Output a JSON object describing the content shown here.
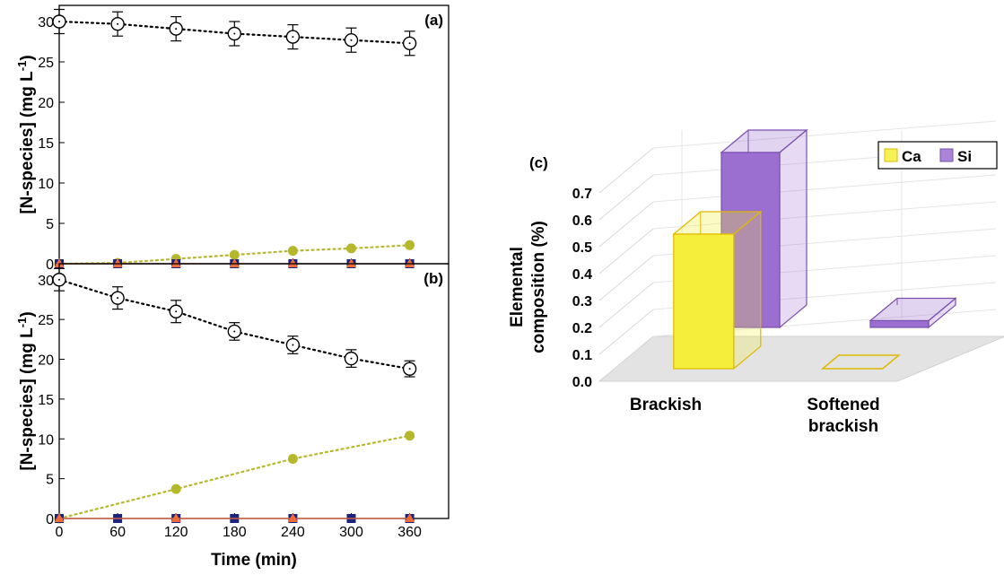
{
  "chart_data": [
    {
      "panel": "a",
      "type": "scatter",
      "label": "(a)",
      "xlim": [
        0,
        400
      ],
      "ylim": [
        0,
        32
      ],
      "x_ticks": [
        0,
        60,
        120,
        180,
        240,
        300,
        360
      ],
      "y_ticks": [
        0,
        5,
        10,
        15,
        20,
        25,
        30
      ],
      "ylabel_main": "[N-species] (mg L",
      "ylabel_sup": "-1",
      "ylabel_end": ")",
      "series": [
        {
          "marker": "open-circle",
          "color": "#000000",
          "x": [
            0,
            60,
            120,
            180,
            240,
            300,
            360
          ],
          "y": [
            30,
            29.7,
            29.1,
            28.5,
            28.1,
            27.7,
            27.3
          ],
          "err": [
            1.5,
            1.5,
            1.5,
            1.5,
            1.5,
            1.5,
            1.5
          ]
        },
        {
          "marker": "filled-circle",
          "color": "#b5b82a",
          "x": [
            0,
            60,
            120,
            180,
            240,
            300,
            360
          ],
          "y": [
            0,
            0.1,
            0.6,
            1.1,
            1.6,
            1.9,
            2.3
          ]
        },
        {
          "marker": "filled-square",
          "color": "#1a237e",
          "x": [
            0,
            60,
            120,
            180,
            240,
            300,
            360
          ],
          "y": [
            0,
            0,
            0,
            0,
            0,
            0,
            0
          ]
        },
        {
          "marker": "filled-triangle",
          "color": "#ef6c3a",
          "x": [
            0,
            60,
            120,
            180,
            240,
            300,
            360
          ],
          "y": [
            0,
            0,
            0,
            0,
            0,
            0,
            0
          ]
        }
      ]
    },
    {
      "panel": "b",
      "type": "scatter",
      "label": "(b)",
      "xlim": [
        0,
        400
      ],
      "ylim": [
        0,
        32
      ],
      "x_ticks": [
        0,
        60,
        120,
        180,
        240,
        300,
        360
      ],
      "y_ticks": [
        0,
        5,
        10,
        15,
        20,
        25,
        30
      ],
      "xlabel": "Time (min)",
      "ylabel_main": "[N-species] (mg L",
      "ylabel_sup": "-1",
      "ylabel_end": ")",
      "series": [
        {
          "marker": "open-circle",
          "color": "#000000",
          "x": [
            0,
            60,
            120,
            180,
            240,
            300,
            360
          ],
          "y": [
            30,
            27.7,
            26,
            23.5,
            21.8,
            20.1,
            18.8
          ],
          "err": [
            1.4,
            1.4,
            1.4,
            1.1,
            1.1,
            1.1,
            1.0
          ]
        },
        {
          "marker": "filled-circle",
          "color": "#b5b82a",
          "x": [
            0,
            120,
            240,
            360
          ],
          "y": [
            0,
            3.7,
            7.5,
            10.4
          ]
        },
        {
          "marker": "filled-square",
          "color": "#1a237e",
          "x": [
            0,
            60,
            120,
            180,
            240,
            300,
            360
          ],
          "y": [
            0,
            0,
            0,
            0,
            0,
            0,
            0
          ]
        },
        {
          "marker": "filled-triangle",
          "color": "#ef6c3a",
          "x": [
            0,
            120,
            240,
            360
          ],
          "y": [
            0,
            0,
            0,
            0
          ]
        }
      ]
    },
    {
      "panel": "c",
      "type": "bar",
      "label": "(c)",
      "categories": [
        "Brackish",
        "Softened brackish"
      ],
      "category_lines": [
        [
          "Brackish"
        ],
        [
          "Softened",
          "brackish"
        ]
      ],
      "ylabel_line1": "Elemental",
      "ylabel_line2": "composition (%)",
      "ylim": [
        0,
        0.7
      ],
      "y_ticks": [
        "0.0",
        "0.1",
        "0.2",
        "0.3",
        "0.4",
        "0.5",
        "0.6",
        "0.7"
      ],
      "legend": [
        {
          "name": "Ca",
          "color": "#f5ee3a"
        },
        {
          "name": "Si",
          "color": "#9b6fcf"
        }
      ],
      "legend_position": "top-right",
      "series": [
        {
          "name": "Ca",
          "values": [
            0.5,
            0.0
          ],
          "color": "#f5ee3a",
          "edge": "#e0b800"
        },
        {
          "name": "Si",
          "values": [
            0.65,
            0.025
          ],
          "color": "#9b6fcf",
          "edge": "#7a4fb0"
        }
      ]
    }
  ]
}
